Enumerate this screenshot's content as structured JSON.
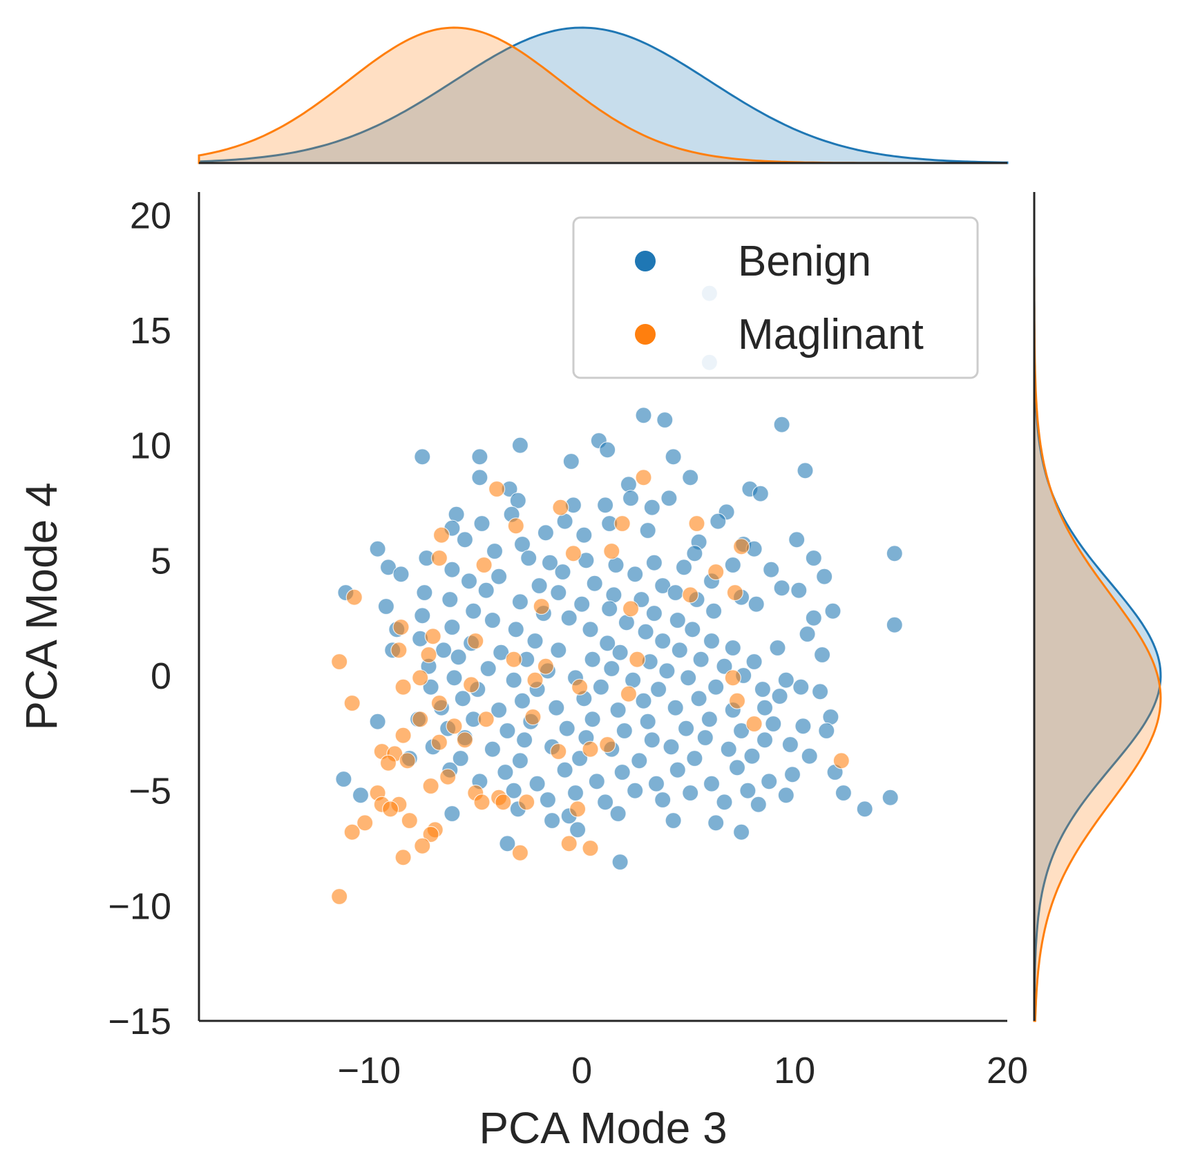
{
  "chart_data": {
    "type": "scatter",
    "subtype": "jointplot-with-kde-marginals",
    "title": "",
    "xlabel": "PCA Mode 3",
    "ylabel": "PCA Mode 4",
    "xlim": [
      -18,
      20
    ],
    "ylim": [
      -15,
      21
    ],
    "xticks": [
      -10,
      0,
      10,
      20
    ],
    "yticks": [
      -15,
      -10,
      -5,
      0,
      5,
      10,
      15,
      20
    ],
    "xtick_labels": [
      "−10",
      "0",
      "10",
      "20"
    ],
    "ytick_labels": [
      "−15",
      "−10",
      "−5",
      "0",
      "5",
      "10",
      "15",
      "20"
    ],
    "grid": false,
    "legend": {
      "position": "top-right",
      "entries": [
        "Benign",
        "Maglinant"
      ]
    },
    "marginal_x": "kde",
    "marginal_y": "kde",
    "series": [
      {
        "name": "Benign",
        "color": "#1f77b4",
        "kde_center": [
          0,
          0
        ],
        "kde_spread": [
          6,
          4
        ],
        "points": [
          [
            6,
            16.6
          ],
          [
            6,
            13.6
          ],
          [
            2.9,
            11.3
          ],
          [
            3.9,
            11.1
          ],
          [
            9.4,
            10.9
          ],
          [
            -2.9,
            10
          ],
          [
            0.8,
            10.2
          ],
          [
            1.2,
            9.8
          ],
          [
            -7.5,
            9.5
          ],
          [
            -4.8,
            9.5
          ],
          [
            -0.5,
            9.3
          ],
          [
            4.3,
            9.5
          ],
          [
            10.5,
            8.9
          ],
          [
            -4.8,
            8.6
          ],
          [
            5.1,
            8.6
          ],
          [
            -3.4,
            8.1
          ],
          [
            2.2,
            8.3
          ],
          [
            7.9,
            8.1
          ],
          [
            8.4,
            7.9
          ],
          [
            -3,
            7.6
          ],
          [
            2.3,
            7.7
          ],
          [
            4.1,
            7.7
          ],
          [
            -0.4,
            7.4
          ],
          [
            1.1,
            7.4
          ],
          [
            3.3,
            7.3
          ],
          [
            6.8,
            7.1
          ],
          [
            -5.9,
            7
          ],
          [
            -3.3,
            7
          ],
          [
            6.4,
            6.7
          ],
          [
            -4.7,
            6.6
          ],
          [
            -0.8,
            6.7
          ],
          [
            1.3,
            6.6
          ],
          [
            3.1,
            6.3
          ],
          [
            -6.1,
            6.4
          ],
          [
            -1.7,
            6.2
          ],
          [
            0.1,
            6.1
          ],
          [
            -5.5,
            5.9
          ],
          [
            -2.8,
            5.7
          ],
          [
            5.5,
            5.8
          ],
          [
            7.6,
            5.7
          ],
          [
            10.1,
            5.9
          ],
          [
            -9.6,
            5.5
          ],
          [
            -4.1,
            5.4
          ],
          [
            -2.5,
            5.1
          ],
          [
            0.2,
            5
          ],
          [
            5.3,
            5.3
          ],
          [
            8.1,
            5.5
          ],
          [
            -7.3,
            5.1
          ],
          [
            -1.5,
            4.9
          ],
          [
            1.6,
            4.8
          ],
          [
            3.4,
            4.9
          ],
          [
            4.8,
            4.7
          ],
          [
            7.1,
            4.8
          ],
          [
            10.9,
            5.1
          ],
          [
            14.7,
            5.3
          ],
          [
            -9.1,
            4.7
          ],
          [
            -6.1,
            4.6
          ],
          [
            -3.9,
            4.3
          ],
          [
            -0.9,
            4.5
          ],
          [
            2.5,
            4.4
          ],
          [
            8.9,
            4.6
          ],
          [
            11.4,
            4.3
          ],
          [
            -8.5,
            4.4
          ],
          [
            -5.3,
            4.1
          ],
          [
            -2,
            3.9
          ],
          [
            0.6,
            4
          ],
          [
            3.8,
            3.9
          ],
          [
            6.1,
            4.1
          ],
          [
            -11.1,
            3.6
          ],
          [
            -7.4,
            3.6
          ],
          [
            -4.5,
            3.7
          ],
          [
            -1.1,
            3.6
          ],
          [
            1.5,
            3.5
          ],
          [
            4.4,
            3.6
          ],
          [
            9.4,
            3.8
          ],
          [
            -6.2,
            3.3
          ],
          [
            -2.9,
            3.2
          ],
          [
            0,
            3.1
          ],
          [
            2.8,
            3.3
          ],
          [
            5.4,
            3.3
          ],
          [
            7.5,
            3.4
          ],
          [
            10.2,
            3.7
          ],
          [
            -9.2,
            3
          ],
          [
            -5.1,
            2.8
          ],
          [
            -1.8,
            2.7
          ],
          [
            1.3,
            2.9
          ],
          [
            3.4,
            2.7
          ],
          [
            6.2,
            2.8
          ],
          [
            8.2,
            3.1
          ],
          [
            11.8,
            2.8
          ],
          [
            -7.5,
            2.6
          ],
          [
            -4.2,
            2.4
          ],
          [
            -0.6,
            2.5
          ],
          [
            2.1,
            2.3
          ],
          [
            4.5,
            2.4
          ],
          [
            10.9,
            2.5
          ],
          [
            14.7,
            2.2
          ],
          [
            -8.7,
            2
          ],
          [
            -6.1,
            2.1
          ],
          [
            -3.1,
            2
          ],
          [
            0.4,
            2
          ],
          [
            3,
            1.9
          ],
          [
            5.2,
            2
          ],
          [
            10.6,
            1.8
          ],
          [
            -7.6,
            1.6
          ],
          [
            -5.2,
            1.4
          ],
          [
            -2.2,
            1.5
          ],
          [
            1.2,
            1.4
          ],
          [
            3.8,
            1.5
          ],
          [
            6.1,
            1.5
          ],
          [
            -6.5,
            1.1
          ],
          [
            -3.8,
            1
          ],
          [
            -1.1,
            1.1
          ],
          [
            1.8,
            1
          ],
          [
            4.6,
            1.1
          ],
          [
            7.1,
            1.2
          ],
          [
            9.2,
            1.2
          ],
          [
            -8.9,
            1.1
          ],
          [
            -5.8,
            0.8
          ],
          [
            -2.6,
            0.7
          ],
          [
            0.5,
            0.7
          ],
          [
            3.2,
            0.6
          ],
          [
            5.6,
            0.7
          ],
          [
            8.1,
            0.6
          ],
          [
            11.3,
            0.9
          ],
          [
            -7.2,
            0.4
          ],
          [
            -4.4,
            0.3
          ],
          [
            -1.6,
            0.2
          ],
          [
            1.4,
            0.3
          ],
          [
            4,
            0.2
          ],
          [
            6.7,
            0.4
          ],
          [
            -6,
            -0.1
          ],
          [
            -3.2,
            -0.2
          ],
          [
            -0.3,
            -0.1
          ],
          [
            2.4,
            -0.2
          ],
          [
            5,
            -0.1
          ],
          [
            7.6,
            0
          ],
          [
            9.6,
            -0.2
          ],
          [
            -7.1,
            -0.5
          ],
          [
            -4.9,
            -0.6
          ],
          [
            -2.1,
            -0.6
          ],
          [
            0.9,
            -0.5
          ],
          [
            3.6,
            -0.6
          ],
          [
            6.3,
            -0.5
          ],
          [
            8.5,
            -0.6
          ],
          [
            10.3,
            -0.5
          ],
          [
            -5.6,
            -1
          ],
          [
            -2.8,
            -1.1
          ],
          [
            0.1,
            -1
          ],
          [
            2.9,
            -1.1
          ],
          [
            5.5,
            -1
          ],
          [
            9.3,
            -0.9
          ],
          [
            11.2,
            -0.7
          ],
          [
            -6.6,
            -1.4
          ],
          [
            -3.9,
            -1.5
          ],
          [
            -1.2,
            -1.4
          ],
          [
            1.7,
            -1.5
          ],
          [
            4.4,
            -1.4
          ],
          [
            7.1,
            -1.5
          ],
          [
            8.6,
            -1.4
          ],
          [
            -7.7,
            -1.9
          ],
          [
            -5.1,
            -1.9
          ],
          [
            -2.4,
            -2
          ],
          [
            0.5,
            -1.9
          ],
          [
            3.1,
            -2
          ],
          [
            6,
            -1.9
          ],
          [
            9,
            -2.1
          ],
          [
            11.7,
            -1.8
          ],
          [
            -9.6,
            -2
          ],
          [
            -6.3,
            -2.3
          ],
          [
            -3.5,
            -2.4
          ],
          [
            -0.7,
            -2.3
          ],
          [
            2,
            -2.4
          ],
          [
            4.9,
            -2.3
          ],
          [
            7.5,
            -2.4
          ],
          [
            10.4,
            -2.2
          ],
          [
            -5.5,
            -2.7
          ],
          [
            -2.7,
            -2.8
          ],
          [
            0.2,
            -2.7
          ],
          [
            3.3,
            -2.8
          ],
          [
            5.8,
            -2.7
          ],
          [
            8.6,
            -2.8
          ],
          [
            11.5,
            -2.4
          ],
          [
            -7,
            -3.1
          ],
          [
            -4.2,
            -3.2
          ],
          [
            -1.4,
            -3.1
          ],
          [
            1.4,
            -3.2
          ],
          [
            4.2,
            -3.1
          ],
          [
            6.9,
            -3.2
          ],
          [
            9.8,
            -3
          ],
          [
            -8.1,
            -3.6
          ],
          [
            -5.7,
            -3.6
          ],
          [
            -2.9,
            -3.7
          ],
          [
            -0.1,
            -3.6
          ],
          [
            2.7,
            -3.7
          ],
          [
            5.3,
            -3.6
          ],
          [
            8,
            -3.5
          ],
          [
            10.7,
            -3.5
          ],
          [
            -6.2,
            -4.1
          ],
          [
            -3.6,
            -4.2
          ],
          [
            -0.8,
            -4.1
          ],
          [
            1.9,
            -4.2
          ],
          [
            4.5,
            -4.1
          ],
          [
            7.3,
            -4
          ],
          [
            9.9,
            -4.3
          ],
          [
            11.9,
            -4.2
          ],
          [
            -11.2,
            -4.5
          ],
          [
            -4.8,
            -4.6
          ],
          [
            -2.1,
            -4.7
          ],
          [
            0.7,
            -4.6
          ],
          [
            3.5,
            -4.7
          ],
          [
            6.1,
            -4.7
          ],
          [
            8.8,
            -4.6
          ],
          [
            -3.2,
            -5
          ],
          [
            -0.3,
            -5.1
          ],
          [
            2.5,
            -5
          ],
          [
            5.1,
            -5.1
          ],
          [
            7.8,
            -5
          ],
          [
            9.6,
            -5.2
          ],
          [
            12.3,
            -5.1
          ],
          [
            -10.4,
            -5.2
          ],
          [
            -1.6,
            -5.4
          ],
          [
            1.1,
            -5.5
          ],
          [
            3.8,
            -5.4
          ],
          [
            6.7,
            -5.5
          ],
          [
            8.3,
            -5.6
          ],
          [
            13.3,
            -5.8
          ],
          [
            14.5,
            -5.3
          ],
          [
            -6.1,
            -6
          ],
          [
            -3,
            -5.8
          ],
          [
            -0.6,
            -6.1
          ],
          [
            1.7,
            -6
          ],
          [
            4.3,
            -6.3
          ],
          [
            6.3,
            -6.4
          ],
          [
            -1.4,
            -6.3
          ],
          [
            -0.2,
            -6.7
          ],
          [
            7.5,
            -6.8
          ],
          [
            -3.5,
            -7.3
          ],
          [
            1.8,
            -8.1
          ]
        ]
      },
      {
        "name": "Maglinant",
        "color": "#ff7f0e",
        "kde_center": [
          -6,
          -1
        ],
        "kde_spread": [
          5,
          4.5
        ],
        "points": [
          [
            2.9,
            8.6
          ],
          [
            -4,
            8.1
          ],
          [
            -1,
            7.3
          ],
          [
            1.9,
            6.6
          ],
          [
            5.4,
            6.6
          ],
          [
            -6.6,
            6.1
          ],
          [
            -3.1,
            6.5
          ],
          [
            -0.4,
            5.3
          ],
          [
            1.4,
            5.4
          ],
          [
            7.5,
            5.6
          ],
          [
            -6.7,
            5.1
          ],
          [
            -4.6,
            4.8
          ],
          [
            6.3,
            4.5
          ],
          [
            -10.7,
            3.4
          ],
          [
            5.1,
            3.5
          ],
          [
            7.2,
            3.6
          ],
          [
            -1.9,
            3
          ],
          [
            2.3,
            2.9
          ],
          [
            -8.5,
            2.1
          ],
          [
            -7,
            1.7
          ],
          [
            -5,
            1.5
          ],
          [
            -8.6,
            1.1
          ],
          [
            -7.2,
            0.9
          ],
          [
            -3.2,
            0.7
          ],
          [
            -1.7,
            0.4
          ],
          [
            2.6,
            0.7
          ],
          [
            -11.4,
            0.6
          ],
          [
            -7.6,
            -0.1
          ],
          [
            -5.2,
            -0.4
          ],
          [
            -2.2,
            -0.2
          ],
          [
            -0.1,
            -0.5
          ],
          [
            7.1,
            -0.1
          ],
          [
            -8.4,
            -0.5
          ],
          [
            -6.7,
            -1.2
          ],
          [
            2.2,
            -0.8
          ],
          [
            7.3,
            -1.1
          ],
          [
            -10.8,
            -1.2
          ],
          [
            -4.5,
            -1.9
          ],
          [
            -7.6,
            -1.9
          ],
          [
            -6,
            -2.2
          ],
          [
            -2.3,
            -1.8
          ],
          [
            8.1,
            -2.1
          ],
          [
            -8.4,
            -2.6
          ],
          [
            -5.5,
            -2.8
          ],
          [
            -9.4,
            -3.3
          ],
          [
            -8.8,
            -3.4
          ],
          [
            -6.7,
            -2.9
          ],
          [
            -1.1,
            -3.3
          ],
          [
            0.4,
            -3.2
          ],
          [
            1.2,
            -3
          ],
          [
            12.2,
            -3.7
          ],
          [
            -9.1,
            -3.8
          ],
          [
            -8.2,
            -3.7
          ],
          [
            -6.3,
            -4.4
          ],
          [
            -7.1,
            -4.8
          ],
          [
            -9.6,
            -5.1
          ],
          [
            -5,
            -5.1
          ],
          [
            -3.9,
            -5.3
          ],
          [
            -2.6,
            -5.5
          ],
          [
            -9.4,
            -5.6
          ],
          [
            -8.6,
            -5.6
          ],
          [
            -4.7,
            -5.5
          ],
          [
            -3.7,
            -5.5
          ],
          [
            -9,
            -5.8
          ],
          [
            -0.2,
            -5.8
          ],
          [
            -10.2,
            -6.4
          ],
          [
            -8.1,
            -6.3
          ],
          [
            -10.8,
            -6.8
          ],
          [
            -6.9,
            -6.7
          ],
          [
            -7.1,
            -6.9
          ],
          [
            -7.5,
            -7.4
          ],
          [
            -8.4,
            -7.9
          ],
          [
            -0.6,
            -7.3
          ],
          [
            0.4,
            -7.5
          ],
          [
            -2.9,
            -7.7
          ],
          [
            -11.4,
            -9.6
          ]
        ]
      }
    ]
  }
}
